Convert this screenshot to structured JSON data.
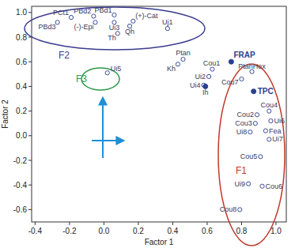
{
  "chart_data": {
    "type": "scatter",
    "xlabel": "Factor 1",
    "ylabel": "Factor 2",
    "xlim": [
      -0.42,
      1.06
    ],
    "ylim": [
      -0.7,
      1.05
    ],
    "xticks": [
      -0.4,
      -0.2,
      {
        "value": 0,
        "label": "0.0"
      },
      0.2,
      0.4,
      0.6,
      0.8,
      {
        "value": 1,
        "label": "1.0"
      }
    ],
    "yticks": [
      -0.6,
      -0.4,
      -0.2,
      {
        "value": 0,
        "label": "0.0"
      },
      0.2,
      0.4,
      0.6,
      0.8,
      {
        "value": 1,
        "label": "1.0"
      }
    ],
    "grid": false,
    "series": [
      {
        "marker": "circle-open",
        "color": "#3a4c9a",
        "points": [
          "PCt1",
          "PBd2",
          "PBd1",
          "(+)-Cat",
          "PBd3",
          "(-)-Epi",
          "Ui3",
          "Qh",
          "Th",
          "Uj1",
          "Ui5",
          "Ptan",
          "Kh",
          "Cou1",
          "Ui2",
          "Ui4",
          "PtanHex",
          "Cou7",
          "Cou2",
          "Cou4",
          "Cou3",
          "Ui6",
          "Ui8",
          "Fea",
          "Ui7",
          "Cou5",
          "Ui9",
          "Cou6",
          "Cou8"
        ],
        "x": [
          -0.19,
          -0.06,
          0.06,
          0.17,
          -0.27,
          -0.05,
          0.06,
          0.15,
          0.08,
          0.37,
          0.02,
          0.46,
          0.43,
          0.63,
          0.61,
          0.58,
          0.86,
          0.8,
          0.89,
          0.96,
          0.88,
          0.97,
          0.85,
          0.94,
          0.96,
          0.91,
          0.84,
          0.92,
          0.79
        ],
        "values": [
          0.96,
          0.97,
          0.98,
          0.93,
          0.92,
          0.92,
          0.92,
          0.89,
          0.83,
          0.87,
          0.51,
          0.62,
          0.58,
          0.54,
          0.48,
          0.41,
          0.52,
          0.46,
          0.17,
          0.2,
          0.1,
          0.12,
          0.03,
          0.04,
          -0.03,
          -0.17,
          -0.39,
          -0.41,
          -0.6
        ]
      },
      {
        "marker": "circle",
        "color": "#2b3f8f",
        "points": [
          "FRAP",
          "Ih",
          "TPC"
        ],
        "x": [
          0.74,
          0.59,
          0.87
        ],
        "values": [
          0.6,
          0.4,
          0.36
        ]
      }
    ],
    "annotations": [
      {
        "text": "F2",
        "color": "#3b3b8f"
      },
      {
        "text": "F3",
        "color": "#2e9a4a"
      },
      {
        "text": "F1",
        "color": "#c0392b"
      }
    ]
  }
}
